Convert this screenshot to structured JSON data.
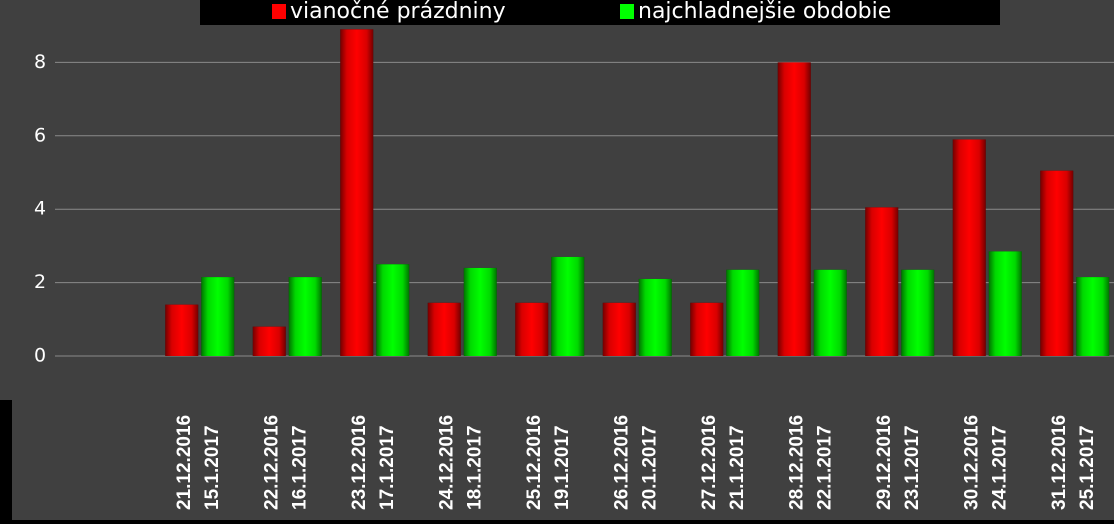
{
  "chart_data": {
    "type": "bar",
    "categories": [
      [
        "21.12.2016",
        "15.1.2017"
      ],
      [
        "22.12.2016",
        "16.1.2017"
      ],
      [
        "23.12.2016",
        "17.1.2017"
      ],
      [
        "24.12.2016",
        "18.1.2017"
      ],
      [
        "25.12.2016",
        "19.1.2017"
      ],
      [
        "26.12.2016",
        "20.1.2017"
      ],
      [
        "27.12.2016",
        "21.1.2017"
      ],
      [
        "28.12.2016",
        "22.1.2017"
      ],
      [
        "29.12.2016",
        "23.1.2017"
      ],
      [
        "30.12.2016",
        "24.1.2017"
      ],
      [
        "31.12.2016",
        "25.1.2017"
      ]
    ],
    "series": [
      {
        "name": "vianočné prázdniny",
        "color": "#ff0000",
        "values": [
          1.4,
          0.8,
          8.9,
          1.45,
          1.45,
          1.45,
          1.45,
          8.0,
          4.05,
          5.9,
          5.05
        ]
      },
      {
        "name": "najchladnejšie obdobie",
        "color": "#00ff00",
        "values": [
          2.15,
          2.15,
          2.5,
          2.4,
          2.7,
          2.1,
          2.35,
          2.35,
          2.35,
          2.85,
          2.15
        ]
      }
    ],
    "ylim": [
      0,
      9.7
    ],
    "yticks": [
      0,
      2,
      4,
      6,
      8
    ],
    "grid": true,
    "legend": "top"
  }
}
